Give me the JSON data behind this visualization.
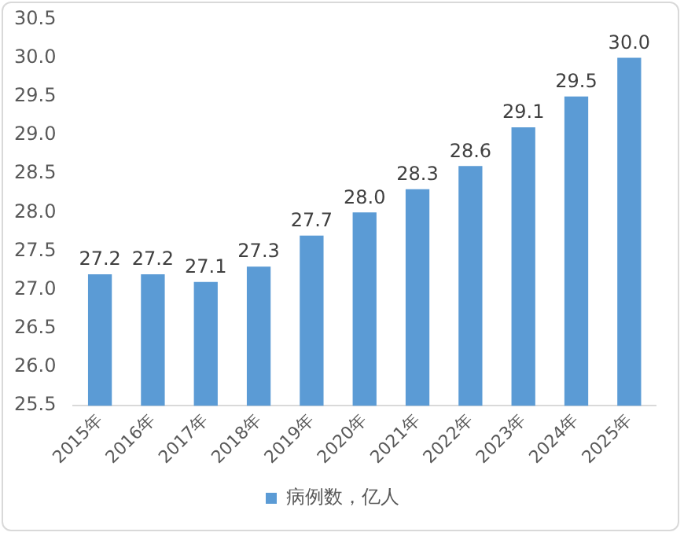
{
  "chart_data": {
    "type": "bar",
    "categories": [
      "2015年",
      "2016年",
      "2017年",
      "2018年",
      "2019年",
      "2020年",
      "2021年",
      "2022年",
      "2023年",
      "2024年",
      "2025年"
    ],
    "series": [
      {
        "name": "病例数，亿人",
        "color": "#5b9bd5",
        "values": [
          27.2,
          27.2,
          27.1,
          27.3,
          27.7,
          28.0,
          28.3,
          28.6,
          29.1,
          29.5,
          30.0
        ],
        "value_labels": [
          "27.2",
          "27.2",
          "27.1",
          "27.3",
          "27.7",
          "28.0",
          "28.3",
          "28.6",
          "29.1",
          "29.5",
          "30.0"
        ]
      }
    ],
    "ylim": [
      25.5,
      30.5
    ],
    "yticks": [
      {
        "value": 25.5,
        "label": "25.5"
      },
      {
        "value": 26,
        "label": "26.0"
      },
      {
        "value": 26.5,
        "label": "26.5"
      },
      {
        "value": 27,
        "label": "27.0"
      },
      {
        "value": 27.5,
        "label": "27.5"
      },
      {
        "value": 28,
        "label": "28.0"
      },
      {
        "value": 28.5,
        "label": "28.5"
      },
      {
        "value": 29,
        "label": "29.0"
      },
      {
        "value": 29.5,
        "label": "29.5"
      },
      {
        "value": 30,
        "label": "30.0"
      },
      {
        "value": 30.5,
        "label": "30.5"
      }
    ],
    "grid": false,
    "legend": "bottom"
  }
}
